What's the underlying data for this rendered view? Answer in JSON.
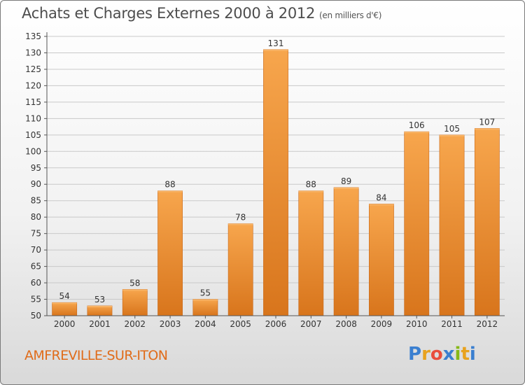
{
  "header": {
    "title": "Achats et Charges Externes 2000 à 2012",
    "unit": "(en milliers d'€)"
  },
  "footer": {
    "city": "AMFREVILLE-SUR-ITON",
    "logo": {
      "letters": [
        "P",
        "r",
        "o",
        "x",
        "i",
        "t",
        "i"
      ],
      "colors": [
        "#3a7fd0",
        "#e8a21e",
        "#e94e3c",
        "#3a7fd0",
        "#86b817",
        "#e8a21e",
        "#3a7fd0"
      ]
    }
  },
  "colors": {
    "bar_light": "#f7a64d",
    "bar_dark": "#d8751c",
    "grid": "#c9c9c9",
    "axis_text": "#333333"
  },
  "chart_data": {
    "type": "bar",
    "categories": [
      "2000",
      "2001",
      "2002",
      "2003",
      "2004",
      "2005",
      "2006",
      "2007",
      "2008",
      "2009",
      "2010",
      "2011",
      "2012"
    ],
    "values": [
      54,
      53,
      58,
      88,
      55,
      78,
      131,
      88,
      89,
      84,
      106,
      105,
      107
    ],
    "ylim": [
      50,
      135
    ],
    "yticks": [
      50,
      55,
      60,
      65,
      70,
      75,
      80,
      85,
      90,
      95,
      100,
      105,
      110,
      115,
      120,
      125,
      130,
      135
    ],
    "grid": true,
    "data_labels": true
  }
}
